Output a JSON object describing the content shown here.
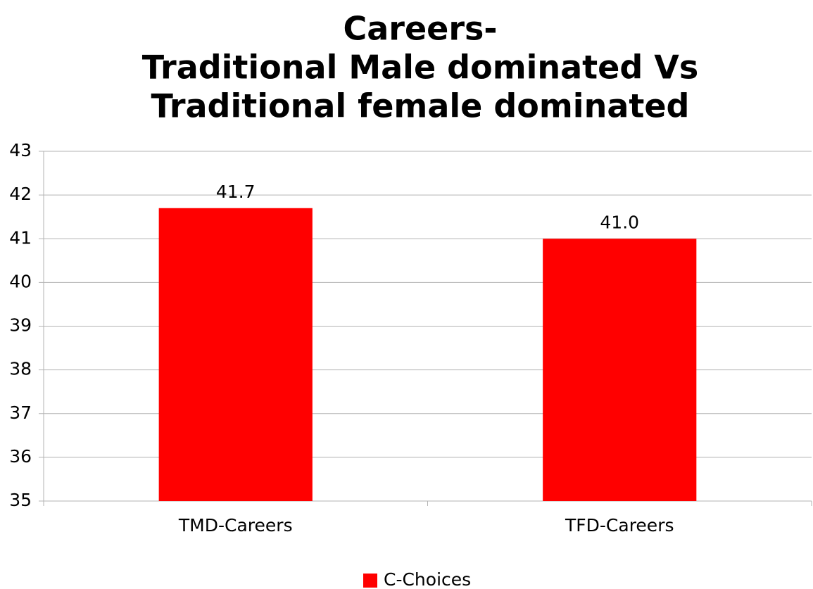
{
  "chart_data": {
    "type": "bar",
    "title": [
      "Careers-",
      "Traditional Male dominated Vs",
      "Traditional female dominated"
    ],
    "categories": [
      "TMD-Careers",
      "TFD-Careers"
    ],
    "series": [
      {
        "name": "C-Choices",
        "color": "#ff0000",
        "values": [
          41.7,
          41.0
        ],
        "value_labels": [
          "41.7",
          "41.0"
        ]
      }
    ],
    "ylim": [
      35,
      43
    ],
    "yticks": [
      35,
      36,
      37,
      38,
      39,
      40,
      41,
      42,
      43
    ],
    "grid": true,
    "legend": "bottom"
  }
}
